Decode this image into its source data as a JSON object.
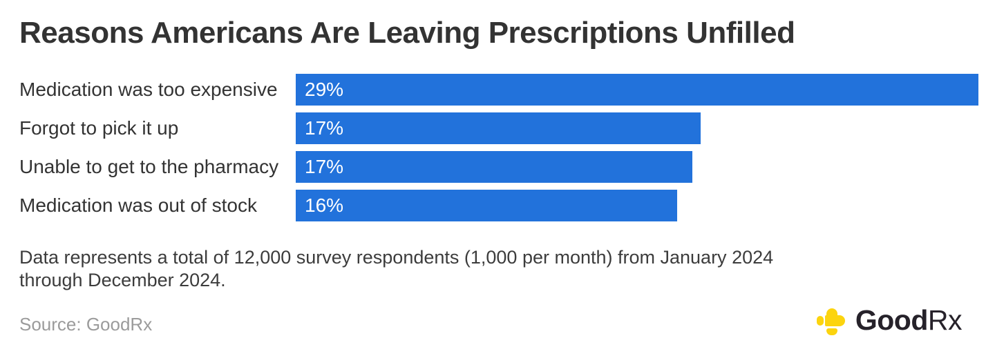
{
  "title": "Reasons Americans Are Leaving Prescriptions Unfilled",
  "chart_data": {
    "type": "bar",
    "orientation": "horizontal",
    "title": "Reasons Americans Are Leaving Prescriptions Unfilled",
    "categories": [
      "Medication was too expensive",
      "Forgot to pick it up",
      "Unable to get to the pharmacy",
      "Medication was out of stock"
    ],
    "values": [
      29,
      17,
      17,
      16
    ],
    "value_labels": [
      "29%",
      "17%",
      "17%",
      "16%"
    ],
    "bar_widths_pct_of_max": [
      100,
      59.3,
      58.1,
      55.9
    ],
    "xlabel": "",
    "ylabel": "",
    "grid": false,
    "legend": false,
    "bar_color": "#2272db",
    "value_label_color": "#ffffff",
    "value_labels_inside_bar": true
  },
  "footnote": {
    "lines": [
      "Data represents a total of 12,000 survey respondents (1,000 per month) from January 2024",
      "through December 2024."
    ]
  },
  "source_label": "Source: GoodRx",
  "logo": {
    "good": "Good",
    "rx": "Rx",
    "cross_color": "#fcd40e",
    "text_color": "#26222a"
  },
  "colors": {
    "background": "#ffffff",
    "bar_blue": "#2272db",
    "title_text": "#333333",
    "body_text": "#3c3c3c",
    "muted_text": "#9b9b9b"
  }
}
